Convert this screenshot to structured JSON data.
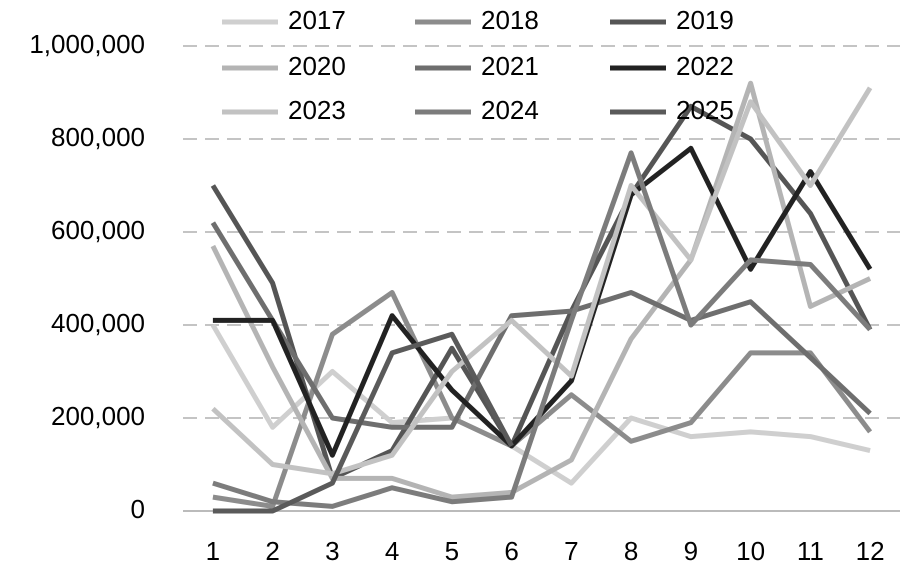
{
  "chart_data": {
    "type": "line",
    "x": [
      1,
      2,
      3,
      4,
      5,
      6,
      7,
      8,
      9,
      10,
      11,
      12
    ],
    "xlim": [
      0.5,
      12.5
    ],
    "xticks": [
      1,
      2,
      3,
      4,
      5,
      6,
      7,
      8,
      9,
      10,
      11,
      12
    ],
    "ylim": [
      0,
      1000000
    ],
    "yticks": [
      0,
      {
        "value": 200000,
        "label": "200,000"
      },
      {
        "value": 400000,
        "label": "400,000"
      },
      {
        "value": 600000,
        "label": "600,000"
      },
      {
        "value": 800000,
        "label": "800,000"
      },
      {
        "value": 1000000,
        "label": "1,000,000"
      }
    ],
    "grid": true,
    "legend": "top",
    "series": [
      {
        "name": "2017",
        "color": "#cfcfcf",
        "values": [
          400000,
          180000,
          300000,
          190000,
          200000,
          140000,
          60000,
          200000,
          160000,
          170000,
          160000,
          130000
        ]
      },
      {
        "name": "2018",
        "color": "#8c8c8c",
        "values": [
          30000,
          10000,
          380000,
          470000,
          200000,
          140000,
          250000,
          150000,
          190000,
          340000,
          340000,
          170000
        ]
      },
      {
        "name": "2019",
        "color": "#555555",
        "values": [
          700000,
          490000,
          70000,
          130000,
          350000,
          140000,
          430000,
          680000,
          870000,
          800000,
          640000,
          390000
        ]
      },
      {
        "name": "2020",
        "color": "#b4b4b4",
        "values": [
          570000,
          310000,
          70000,
          70000,
          30000,
          40000,
          110000,
          370000,
          540000,
          920000,
          440000,
          500000
        ]
      },
      {
        "name": "2021",
        "color": "#6e6e6e",
        "values": [
          620000,
          410000,
          200000,
          180000,
          180000,
          420000,
          430000,
          470000,
          410000,
          450000,
          330000,
          210000
        ]
      },
      {
        "name": "2022",
        "color": "#222222",
        "values": [
          410000,
          410000,
          120000,
          420000,
          260000,
          140000,
          280000,
          680000,
          780000,
          520000,
          730000,
          520000
        ]
      },
      {
        "name": "2023",
        "color": "#c2c2c2",
        "values": [
          220000,
          100000,
          80000,
          120000,
          300000,
          410000,
          290000,
          700000,
          540000,
          880000,
          700000,
          910000
        ]
      },
      {
        "name": "2024",
        "color": "#7c7c7c",
        "values": [
          60000,
          20000,
          10000,
          50000,
          20000,
          30000,
          410000,
          770000,
          400000,
          540000,
          530000,
          390000
        ]
      },
      {
        "name": "2025",
        "color": "#5a5a5a",
        "values": [
          0,
          0,
          60000,
          340000,
          380000,
          140000,
          null,
          null,
          null,
          null,
          null,
          null
        ]
      }
    ]
  }
}
